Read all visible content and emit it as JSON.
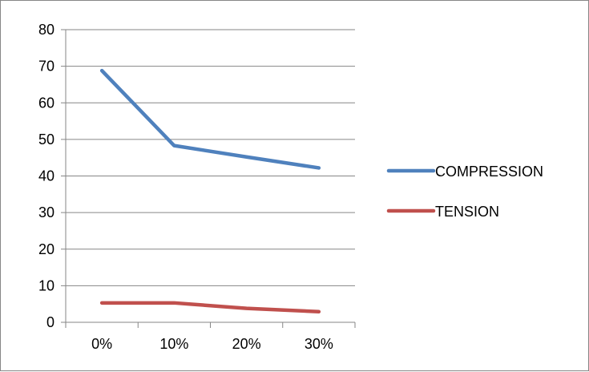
{
  "chart_data": {
    "type": "line",
    "title": "",
    "xlabel": "",
    "ylabel": "",
    "categories": [
      "0%",
      "10%",
      "20%",
      "30%"
    ],
    "ylim": [
      0,
      80
    ],
    "yticks": [
      "0",
      "10",
      "20",
      "30",
      "40",
      "50",
      "60",
      "70",
      "80"
    ],
    "grid": true,
    "legend": "right",
    "series": [
      {
        "name": "COMPRESSION",
        "color": "#4f81bd",
        "values": [
          68.8,
          48.3,
          45.2,
          42.2
        ]
      },
      {
        "name": "TENSION",
        "color": "#c0504d",
        "values": [
          5.3,
          5.3,
          3.8,
          2.9
        ]
      }
    ]
  }
}
